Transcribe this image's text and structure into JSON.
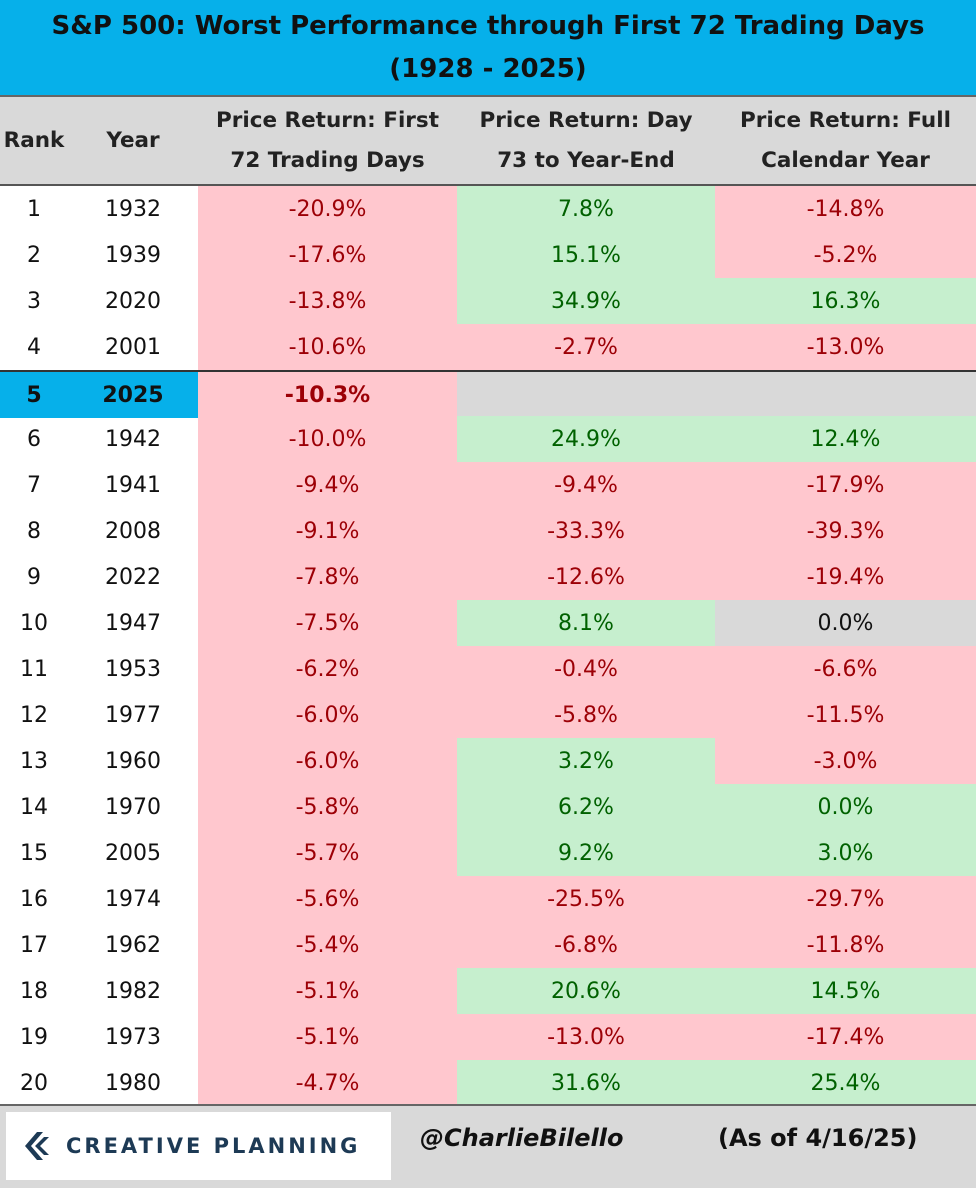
{
  "title_line1": "S&P 500: Worst Performance through First 72 Trading Days",
  "title_line2": "(1928 - 2025)",
  "chart_data": {
    "type": "table",
    "title": "S&P 500: Worst Performance through First 72 Trading Days (1928 - 2025)",
    "columns": [
      {
        "key": "rank",
        "line1": "Rank",
        "line2": ""
      },
      {
        "key": "year",
        "line1": "Year",
        "line2": ""
      },
      {
        "key": "ret1",
        "line1": "Price Return: First",
        "line2": "72 Trading Days"
      },
      {
        "key": "ret2",
        "line1": "Price Return: Day",
        "line2": "73 to Year-End"
      },
      {
        "key": "ret3",
        "line1": "Price Return: Full",
        "line2": "Calendar  Year"
      }
    ],
    "rows": [
      {
        "rank": "1",
        "year": "1932",
        "ret1": "-20.9%",
        "ret2": "7.8%",
        "ret3": "-14.8%"
      },
      {
        "rank": "2",
        "year": "1939",
        "ret1": "-17.6%",
        "ret2": "15.1%",
        "ret3": "-5.2%"
      },
      {
        "rank": "3",
        "year": "2020",
        "ret1": "-13.8%",
        "ret2": "34.9%",
        "ret3": "16.3%"
      },
      {
        "rank": "4",
        "year": "2001",
        "ret1": "-10.6%",
        "ret2": "-2.7%",
        "ret3": "-13.0%"
      },
      {
        "rank": "5",
        "year": "2025",
        "ret1": "-10.3%",
        "ret2": "",
        "ret3": "",
        "highlight": true
      },
      {
        "rank": "6",
        "year": "1942",
        "ret1": "-10.0%",
        "ret2": "24.9%",
        "ret3": "12.4%"
      },
      {
        "rank": "7",
        "year": "1941",
        "ret1": "-9.4%",
        "ret2": "-9.4%",
        "ret3": "-17.9%"
      },
      {
        "rank": "8",
        "year": "2008",
        "ret1": "-9.1%",
        "ret2": "-33.3%",
        "ret3": "-39.3%"
      },
      {
        "rank": "9",
        "year": "2022",
        "ret1": "-7.8%",
        "ret2": "-12.6%",
        "ret3": "-19.4%"
      },
      {
        "rank": "10",
        "year": "1947",
        "ret1": "-7.5%",
        "ret2": "8.1%",
        "ret3": "0.0%",
        "ret3_neutral": true
      },
      {
        "rank": "11",
        "year": "1953",
        "ret1": "-6.2%",
        "ret2": "-0.4%",
        "ret3": "-6.6%"
      },
      {
        "rank": "12",
        "year": "1977",
        "ret1": "-6.0%",
        "ret2": "-5.8%",
        "ret3": "-11.5%"
      },
      {
        "rank": "13",
        "year": "1960",
        "ret1": "-6.0%",
        "ret2": "3.2%",
        "ret3": "-3.0%"
      },
      {
        "rank": "14",
        "year": "1970",
        "ret1": "-5.8%",
        "ret2": "6.2%",
        "ret3": "0.0%"
      },
      {
        "rank": "15",
        "year": "2005",
        "ret1": "-5.7%",
        "ret2": "9.2%",
        "ret3": "3.0%"
      },
      {
        "rank": "16",
        "year": "1974",
        "ret1": "-5.6%",
        "ret2": "-25.5%",
        "ret3": "-29.7%"
      },
      {
        "rank": "17",
        "year": "1962",
        "ret1": "-5.4%",
        "ret2": "-6.8%",
        "ret3": "-11.8%"
      },
      {
        "rank": "18",
        "year": "1982",
        "ret1": "-5.1%",
        "ret2": "20.6%",
        "ret3": "14.5%"
      },
      {
        "rank": "19",
        "year": "1973",
        "ret1": "-5.1%",
        "ret2": "-13.0%",
        "ret3": "-17.4%"
      },
      {
        "rank": "20",
        "year": "1980",
        "ret1": "-4.7%",
        "ret2": "31.6%",
        "ret3": "25.4%"
      }
    ]
  },
  "colors": {
    "title_bg": "#06b0ea",
    "header_bg": "#d9d9d9",
    "negative_bg": "#ffc7ce",
    "negative_text": "#9c0006",
    "positive_bg": "#c6efce",
    "positive_text": "#006100",
    "neutral_bg": "#d9d9d9",
    "highlight_bg": "#06b0ea"
  },
  "footer": {
    "logo_text": "CREATIVE PLANNING",
    "logo_icon": "creative-planning-logo-icon",
    "handle": "@CharlieBilello",
    "as_of": "(As of 4/16/25)"
  }
}
